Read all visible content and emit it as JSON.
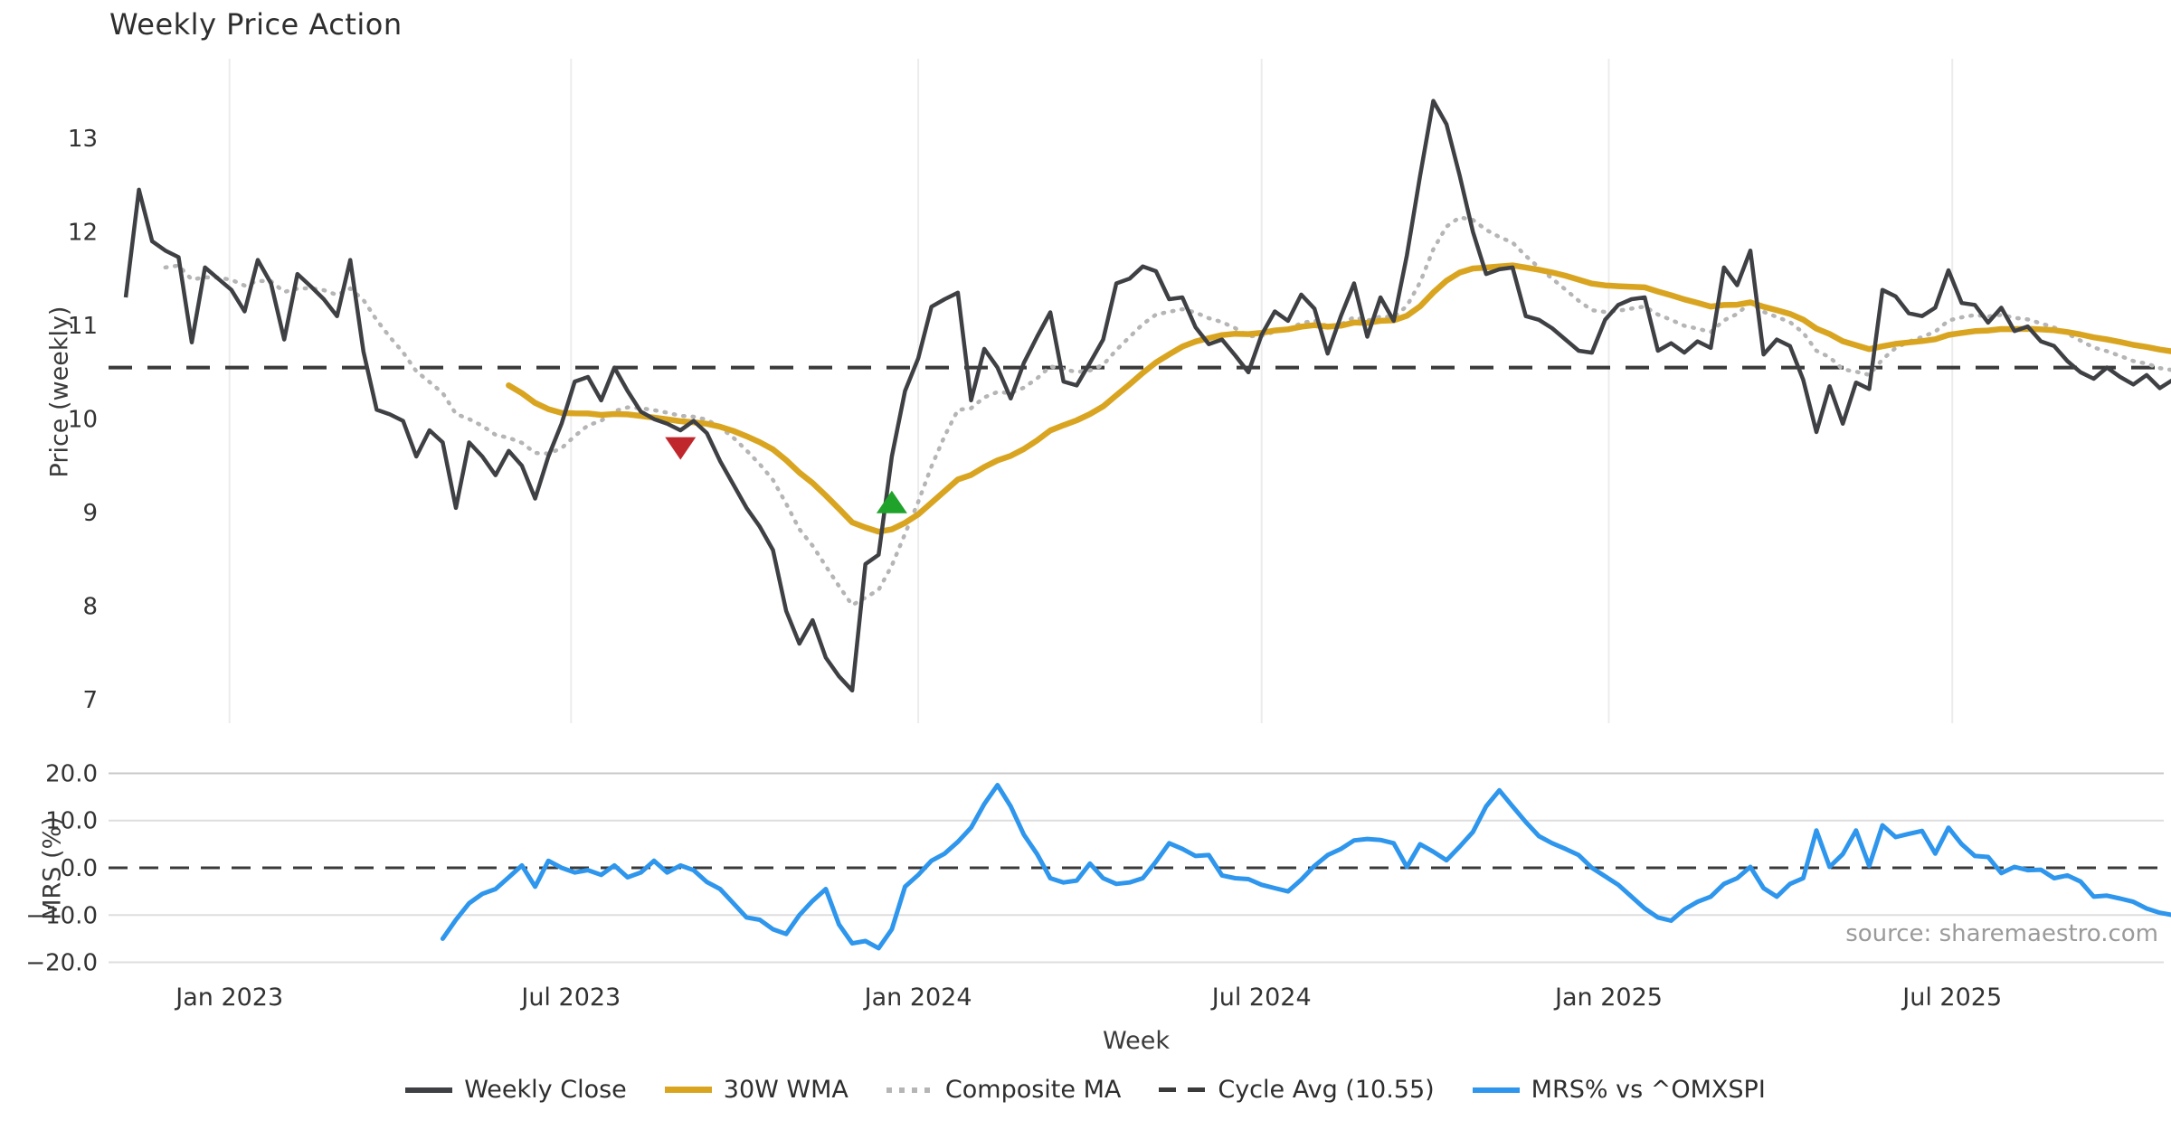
{
  "title": "Weekly Price Action",
  "source": "source: sharemaestro.com",
  "colors": {
    "close": "#3E4044",
    "wma": "#D9A521",
    "composite": "#B5B5B5",
    "cycle": "#3A3A3A",
    "mrs": "#2E96EC",
    "grid_vertical": "#ECECEC",
    "grid_mrs": "#DEDEDE",
    "grid_mrs_top": "#C8C8C8",
    "buy_marker": "#1FA32A",
    "sell_marker": "#C0272D",
    "tick_text": "#333333",
    "muted_text": "#9A9A9A"
  },
  "legend": [
    {
      "label": "Weekly Close",
      "swatch": "solid-close",
      "name": "weekly-close"
    },
    {
      "label": "30W WMA",
      "swatch": "solid-wma",
      "name": "wma"
    },
    {
      "label": "Composite MA",
      "swatch": "dotted",
      "name": "composite-ma"
    },
    {
      "label": "Cycle Avg (10.55)",
      "swatch": "dashed",
      "name": "cycle-avg"
    },
    {
      "label": "MRS% vs ^OMXSPI",
      "swatch": "solid-mrs",
      "name": "mrs"
    }
  ],
  "chart_data": [
    {
      "type": "line",
      "panel": "price",
      "title": "Weekly Price Action",
      "ylabel": "Price (weekly)",
      "xlabel": "Week",
      "ylim": [
        6.75,
        13.85
      ],
      "yticks": [
        7,
        8,
        9,
        10,
        11,
        12,
        13
      ],
      "grid": "vertical-only",
      "x_unit": "weeks since 2022-11-07",
      "xticks": [
        {
          "week": 7.857,
          "label": "Jan 2023"
        },
        {
          "week": 33.714,
          "label": "Jul 2023"
        },
        {
          "week": 60.0,
          "label": "Jan 2024"
        },
        {
          "week": 86.0,
          "label": "Jul 2024"
        },
        {
          "week": 112.286,
          "label": "Jan 2025"
        },
        {
          "week": 138.286,
          "label": "Jul 2025"
        }
      ],
      "cycle_avg": 10.55,
      "series": [
        {
          "name": "Weekly Close",
          "start_week": 0,
          "values": [
            11.3,
            12.45,
            11.9,
            11.8,
            11.73,
            10.82,
            11.62,
            11.5,
            11.38,
            11.15,
            11.7,
            11.45,
            10.85,
            11.55,
            11.42,
            11.28,
            11.1,
            11.7,
            10.72,
            10.1,
            10.05,
            9.98,
            9.6,
            9.88,
            9.75,
            9.05,
            9.75,
            9.6,
            9.4,
            9.66,
            9.5,
            9.15,
            9.6,
            9.95,
            10.4,
            10.45,
            10.2,
            10.55,
            10.3,
            10.08,
            10.0,
            9.95,
            9.88,
            9.98,
            9.85,
            9.55,
            9.3,
            9.05,
            8.85,
            8.6,
            7.95,
            7.6,
            7.85,
            7.45,
            7.25,
            7.1,
            8.45,
            8.55,
            9.6,
            10.3,
            10.65,
            11.2,
            11.28,
            11.35,
            10.2,
            10.75,
            10.55,
            10.22,
            10.6,
            10.88,
            11.14,
            10.4,
            10.36,
            10.6,
            10.85,
            11.45,
            11.5,
            11.63,
            11.58,
            11.28,
            11.3,
            10.98,
            10.8,
            10.85,
            10.68,
            10.5,
            10.9,
            11.15,
            11.05,
            11.33,
            11.18,
            10.7,
            11.1,
            11.45,
            10.88,
            11.3,
            11.05,
            11.75,
            12.6,
            13.4,
            13.15,
            12.6,
            12.0,
            11.55,
            11.6,
            11.62,
            11.1,
            11.06,
            10.97,
            10.85,
            10.73,
            10.71,
            11.06,
            11.22,
            11.28,
            11.3,
            10.73,
            10.81,
            10.71,
            10.83,
            10.76,
            11.62,
            11.43,
            11.8,
            10.69,
            10.85,
            10.78,
            10.42,
            9.86,
            10.35,
            9.95,
            10.39,
            10.32,
            11.38,
            11.31,
            11.13,
            11.1,
            11.19,
            11.59,
            11.24,
            11.22,
            11.03,
            11.19,
            10.94,
            10.99,
            10.83,
            10.78,
            10.62,
            10.5,
            10.43,
            10.55,
            10.45,
            10.37,
            10.47,
            10.33,
            10.42
          ]
        },
        {
          "name": "30W WMA",
          "derived_from": "Weekly Close",
          "method": "linear-weighted moving average",
          "window": 30
        },
        {
          "name": "Composite MA",
          "derived_from": "Weekly Close",
          "method": "exponential moving average",
          "span": 10
        },
        {
          "name": "Cycle Avg (10.55)",
          "constant": 10.55
        }
      ],
      "markers": [
        {
          "type": "sell",
          "shape": "triangle-down",
          "week": 42,
          "price": 9.7
        },
        {
          "type": "buy",
          "shape": "triangle-up",
          "week": 58,
          "price": 9.1
        }
      ]
    },
    {
      "type": "line",
      "panel": "mrs",
      "ylabel": "MRS (%)",
      "ylim": [
        -22,
        22
      ],
      "yticks": [
        20,
        10,
        0,
        -10,
        -20
      ],
      "ytick_labels": [
        "20.0",
        "10.0",
        "0.0",
        "−10.0",
        "−20.0"
      ],
      "zero_line": 0,
      "grid": "horizontal-only",
      "series": [
        {
          "name": "MRS% vs ^OMXSPI",
          "start_week": 24,
          "values": [
            -15.0,
            -11.0,
            -7.5,
            -5.5,
            -4.5,
            -2.0,
            0.5,
            -4.0,
            1.5,
            0.0,
            -1.0,
            -0.5,
            -1.5,
            0.5,
            -2.0,
            -1.0,
            1.5,
            -1.0,
            0.5,
            -0.5,
            -3.0,
            -4.5,
            -7.5,
            -10.5,
            -11.0,
            -13.0,
            -14.0,
            -10.0,
            -7.0,
            -4.5,
            -12.0,
            -16.0,
            -15.5,
            -17.0,
            -13.0,
            -4.0,
            -1.5,
            1.5,
            3.0,
            5.5,
            8.5,
            13.5,
            17.5,
            13.0,
            7.0,
            2.9,
            -2.2,
            -3.1,
            -2.7,
            0.9,
            -2.2,
            -3.4,
            -3.1,
            -2.2,
            1.3,
            5.2,
            4.0,
            2.5,
            2.7,
            -1.6,
            -2.2,
            -2.4,
            -3.6,
            -4.3,
            -5.0,
            -2.5,
            0.4,
            2.7,
            4.0,
            5.8,
            6.1,
            5.9,
            5.2,
            0.2,
            5.0,
            3.4,
            1.6,
            4.5,
            7.6,
            13.0,
            16.4,
            13.0,
            9.7,
            6.7,
            5.2,
            4.0,
            2.7,
            0.0,
            -1.8,
            -3.6,
            -6.1,
            -8.6,
            -10.5,
            -11.2,
            -8.8,
            -7.2,
            -6.1,
            -3.4,
            -2.2,
            0.2,
            -4.3,
            -6.1,
            -3.4,
            -2.2,
            7.9,
            0.2,
            2.9,
            7.9,
            0.4,
            9.0,
            6.5,
            7.2,
            7.8,
            3.0,
            8.5,
            5.0,
            2.5,
            2.3,
            -1.1,
            0.2,
            -0.5,
            -0.4,
            -2.2,
            -1.6,
            -2.9,
            -6.1,
            -5.9,
            -6.5,
            -7.2,
            -8.6,
            -9.5,
            -10.0
          ]
        }
      ]
    }
  ]
}
